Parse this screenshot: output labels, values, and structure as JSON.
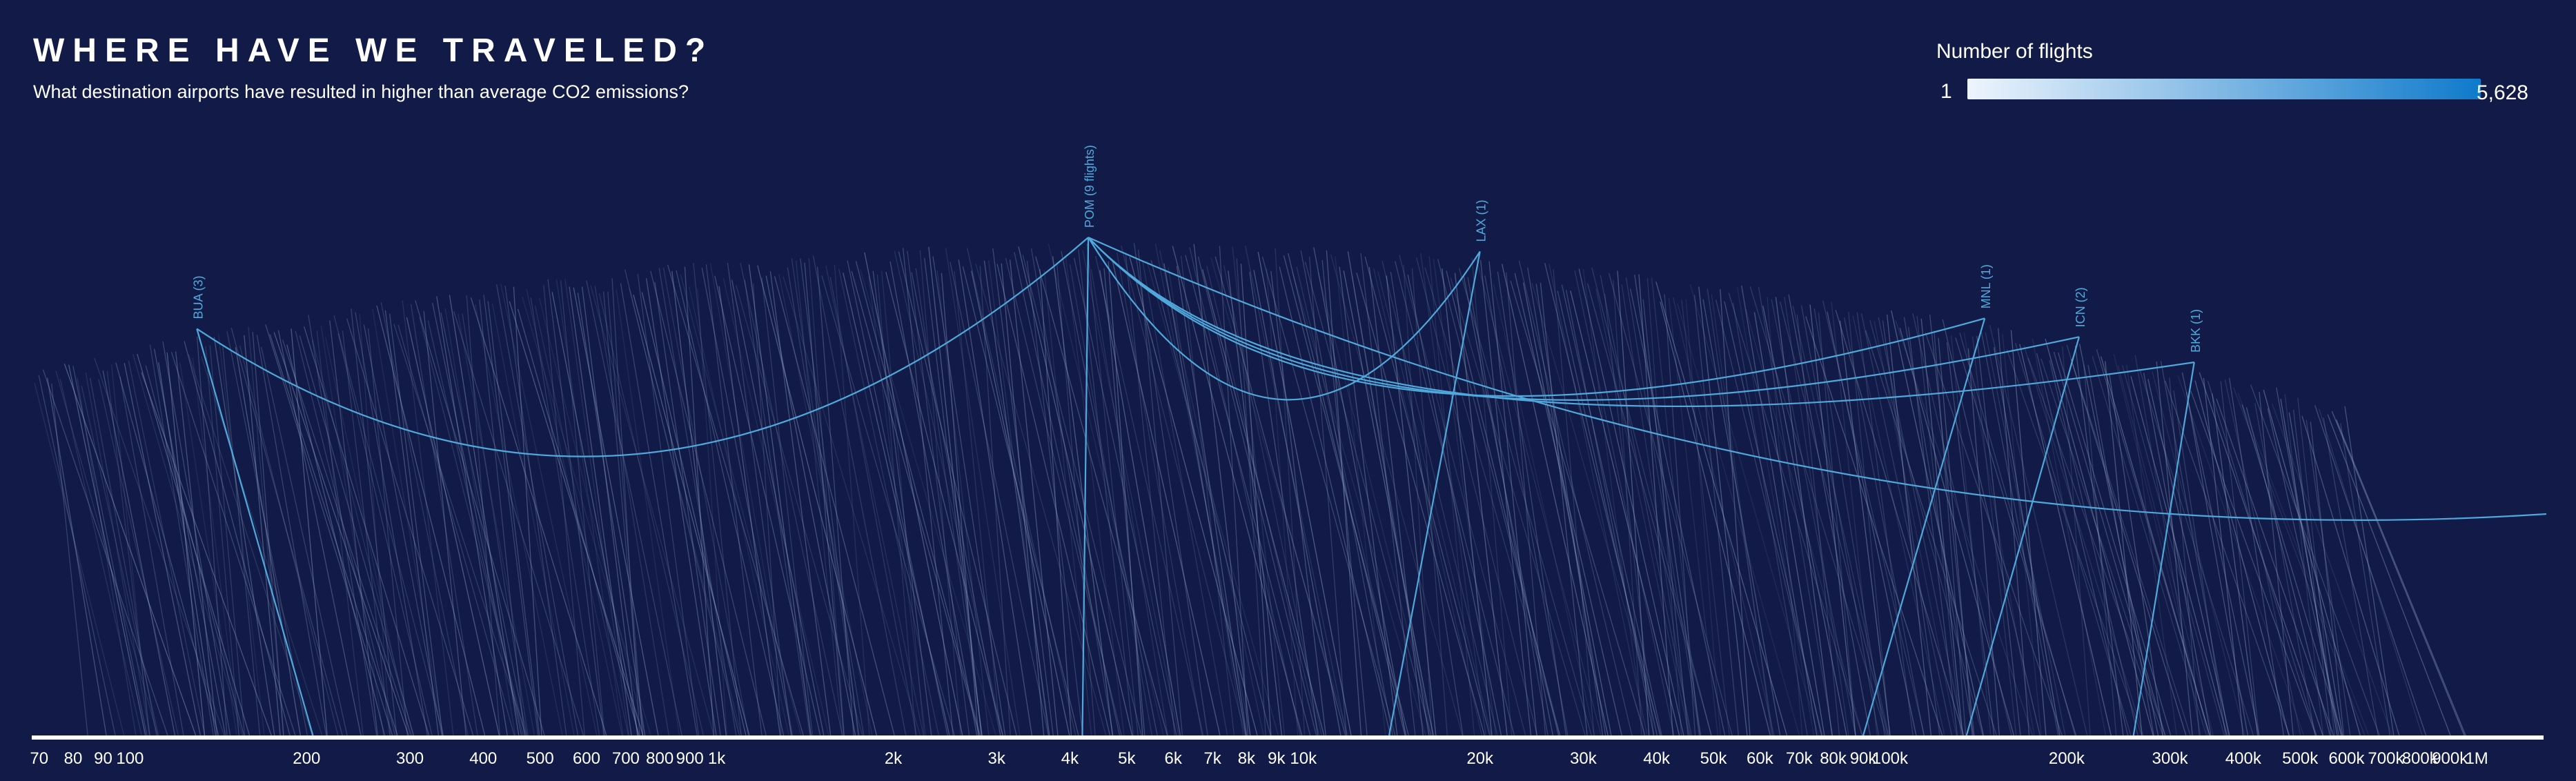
{
  "header": {
    "title": "WHERE HAVE WE TRAVELED?",
    "subtitle": "What destination airports have resulted in higher than average CO2 emissions?"
  },
  "legend": {
    "title": "Number of flights",
    "min_label": "1",
    "max_label": "5,628",
    "color_min": "#eef5fd",
    "color_max": "#0f7acb"
  },
  "colors": {
    "background": "#121b47",
    "arc": "#4fa9dc",
    "line": "#8fa3c9",
    "axis": "#ffffff"
  },
  "chart_data": {
    "type": "arc",
    "x_scale": "log",
    "xlim": [
      68,
      1300000
    ],
    "x_ticks": [
      {
        "value": 70,
        "label": "70"
      },
      {
        "value": 80,
        "label": "80"
      },
      {
        "value": 90,
        "label": "90"
      },
      {
        "value": 100,
        "label": "100"
      },
      {
        "value": 200,
        "label": "200"
      },
      {
        "value": 300,
        "label": "300"
      },
      {
        "value": 400,
        "label": "400"
      },
      {
        "value": 500,
        "label": "500"
      },
      {
        "value": 600,
        "label": "600"
      },
      {
        "value": 700,
        "label": "700"
      },
      {
        "value": 800,
        "label": "800"
      },
      {
        "value": 900,
        "label": "900"
      },
      {
        "value": 1000,
        "label": "1k"
      },
      {
        "value": 2000,
        "label": "2k"
      },
      {
        "value": 3000,
        "label": "3k"
      },
      {
        "value": 4000,
        "label": "4k"
      },
      {
        "value": 5000,
        "label": "5k"
      },
      {
        "value": 6000,
        "label": "6k"
      },
      {
        "value": 7000,
        "label": "7k"
      },
      {
        "value": 8000,
        "label": "8k"
      },
      {
        "value": 9000,
        "label": "9k"
      },
      {
        "value": 10000,
        "label": "10k"
      },
      {
        "value": 20000,
        "label": "20k"
      },
      {
        "value": 30000,
        "label": "30k"
      },
      {
        "value": 40000,
        "label": "40k"
      },
      {
        "value": 50000,
        "label": "50k"
      },
      {
        "value": 60000,
        "label": "60k"
      },
      {
        "value": 70000,
        "label": "70k"
      },
      {
        "value": 80000,
        "label": "80k"
      },
      {
        "value": 90000,
        "label": "90k"
      },
      {
        "value": 100000,
        "label": "100k"
      },
      {
        "value": 200000,
        "label": "200k"
      },
      {
        "value": 300000,
        "label": "300k"
      },
      {
        "value": 400000,
        "label": "400k"
      },
      {
        "value": 500000,
        "label": "500k"
      },
      {
        "value": 600000,
        "label": "600k"
      },
      {
        "value": 700000,
        "label": "700k"
      },
      {
        "value": 800000,
        "label": "800k"
      },
      {
        "value": 900000,
        "label": "900k"
      },
      {
        "value": 1000000,
        "label": "1M"
      }
    ],
    "highlighted_destinations": [
      {
        "code": "BUA",
        "label": "BUA (3)",
        "flights": 3,
        "x": 130,
        "origins": [
          205
        ]
      },
      {
        "code": "POM",
        "label": "POM (9 flights)",
        "flights": 9,
        "x": 4300,
        "origins": [
          130,
          4200,
          1300000
        ]
      },
      {
        "code": "LAX",
        "label": "LAX (1)",
        "flights": 1,
        "x": 20000,
        "origins": [
          14000
        ]
      },
      {
        "code": "MNL",
        "label": "MNL (1)",
        "flights": 1,
        "x": 145000,
        "origins": [
          90000
        ]
      },
      {
        "code": "ICN",
        "label": "ICN (2)",
        "flights": 2,
        "x": 210000,
        "origins": [
          135000
        ]
      },
      {
        "code": "BKK",
        "label": "BKK (1)",
        "flights": 1,
        "x": 330000,
        "origins": [
          260000
        ]
      }
    ],
    "pom_extra_targets": [
      145000,
      210000,
      330000
    ]
  }
}
